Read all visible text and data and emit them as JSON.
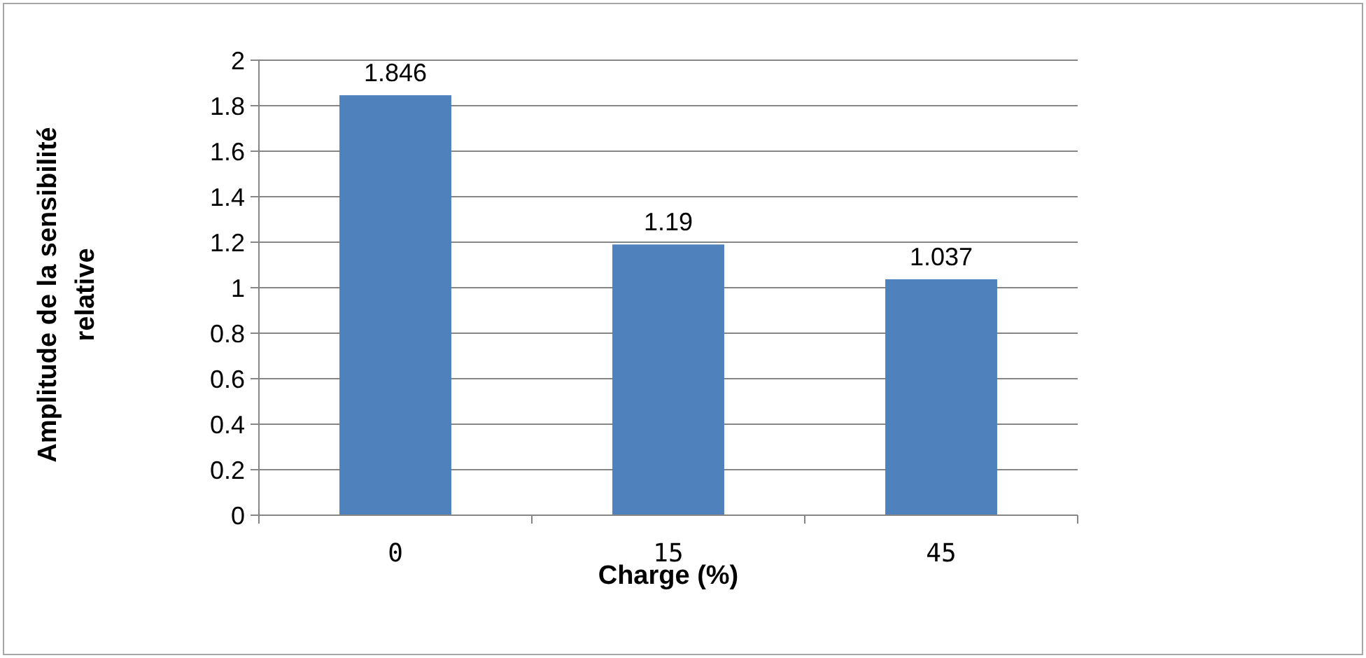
{
  "chart_data": {
    "type": "bar",
    "xlabel": "Charge (%)",
    "ylabel": "Amplitude de la sensibilité relative",
    "categories": [
      "0",
      "15",
      "45"
    ],
    "values": [
      1.846,
      1.19,
      1.037
    ],
    "color": "#4f81bd",
    "data_labels": true,
    "grid": "y",
    "ylim": [
      0,
      2
    ],
    "yticks": [
      0,
      0.2,
      0.4,
      0.6,
      0.8,
      1,
      1.2,
      1.4,
      1.6,
      1.8,
      2
    ]
  }
}
